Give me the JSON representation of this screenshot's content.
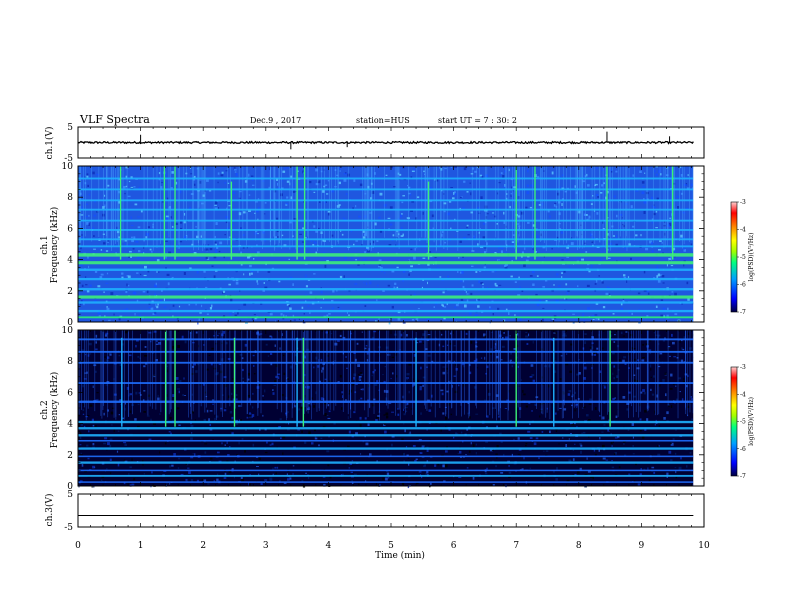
{
  "header": {
    "title": "VLF Spectra",
    "date": "Dec.9 , 2017",
    "station": "station=HUS",
    "start": "start UT = 7 : 30: 2"
  },
  "chart_data": [
    {
      "type": "line",
      "name": "ch1-waveform",
      "ylabel": "ch.1(V)",
      "ylim": [
        -5,
        5
      ],
      "yticks": [
        "5",
        "-5"
      ],
      "xlim": [
        0,
        10
      ],
      "baseline": 0,
      "noise_amplitude": 0.3,
      "spikes": [
        {
          "x": 1.0,
          "y": 2.5
        },
        {
          "x": 3.4,
          "y": -2.2
        },
        {
          "x": 4.3,
          "y": -1.5
        },
        {
          "x": 8.45,
          "y": 3.5
        },
        {
          "x": 9.45,
          "y": 2.0
        }
      ]
    },
    {
      "type": "heatmap",
      "name": "ch1-spectrogram",
      "ylabel": "ch.1\nFrequency (kHz)",
      "ylim": [
        0,
        10
      ],
      "yticks": [
        "0",
        "2",
        "4",
        "6",
        "8",
        "10"
      ],
      "xlim": [
        0,
        9.83
      ],
      "background": "#1f57e0",
      "bands": [
        {
          "f": 0.3,
          "width": 0.12,
          "color": "#2af07a"
        },
        {
          "f": 0.7,
          "width": 0.15,
          "color": "#1eb0ff"
        },
        {
          "f": 1.25,
          "width": 0.15,
          "color": "#1eb0ff"
        },
        {
          "f": 1.6,
          "width": 0.2,
          "color": "#3cf07a"
        },
        {
          "f": 2.1,
          "width": 0.15,
          "color": "#1eb0ff"
        },
        {
          "f": 2.75,
          "width": 0.15,
          "color": "#1eb0ff"
        },
        {
          "f": 3.35,
          "width": 0.15,
          "color": "#1eb0ff"
        },
        {
          "f": 3.8,
          "width": 0.2,
          "color": "#3cf07a"
        },
        {
          "f": 4.3,
          "width": 0.22,
          "color": "#3cf07a"
        },
        {
          "f": 4.85,
          "width": 0.12,
          "color": "#1eb0ff"
        },
        {
          "f": 5.3,
          "width": 0.12,
          "color": "#1eb0ff"
        },
        {
          "f": 5.9,
          "width": 0.12,
          "color": "#1eb0ff"
        },
        {
          "f": 6.5,
          "width": 0.12,
          "color": "#1eb0ff"
        },
        {
          "f": 7.2,
          "width": 0.12,
          "color": "#1eb0ff"
        },
        {
          "f": 7.8,
          "width": 0.12,
          "color": "#1eb0ff"
        },
        {
          "f": 8.5,
          "width": 0.12,
          "color": "#1eb0ff"
        },
        {
          "f": 9.2,
          "width": 0.12,
          "color": "#1eb0ff"
        }
      ],
      "bursts": [
        {
          "t": 0.68,
          "fmin": 4.0,
          "fmax": 10,
          "color": "#3cf07a"
        },
        {
          "t": 1.38,
          "fmin": 4.0,
          "fmax": 10,
          "color": "#3cf07a"
        },
        {
          "t": 1.55,
          "fmin": 4.0,
          "fmax": 10,
          "color": "#3cf07a"
        },
        {
          "t": 2.45,
          "fmin": 4.0,
          "fmax": 9,
          "color": "#3cf07a"
        },
        {
          "t": 3.5,
          "fmin": 4.0,
          "fmax": 10,
          "color": "#3cf07a"
        },
        {
          "t": 3.62,
          "fmin": 4.0,
          "fmax": 10,
          "color": "#3cf07a"
        },
        {
          "t": 5.6,
          "fmin": 4.0,
          "fmax": 9,
          "color": "#3cf07a"
        },
        {
          "t": 7.0,
          "fmin": 4.0,
          "fmax": 10,
          "color": "#3cf07a"
        },
        {
          "t": 7.3,
          "fmin": 4.0,
          "fmax": 10,
          "color": "#3cf07a"
        },
        {
          "t": 8.45,
          "fmin": 4.0,
          "fmax": 10,
          "color": "#3cf07a"
        },
        {
          "t": 9.5,
          "fmin": 4.0,
          "fmax": 10,
          "color": "#3cf07a"
        }
      ]
    },
    {
      "type": "heatmap",
      "name": "ch2-spectrogram",
      "ylabel": "ch.2\nFrequency (kHz)",
      "ylim": [
        0,
        10
      ],
      "yticks": [
        "0",
        "2",
        "4",
        "6",
        "8",
        "10"
      ],
      "xlim": [
        0,
        9.83
      ],
      "background": "#000033",
      "bands": [
        {
          "f": 0.25,
          "width": 0.1,
          "color": "#1e6eff"
        },
        {
          "f": 0.65,
          "width": 0.12,
          "color": "#1eb0ff"
        },
        {
          "f": 1.0,
          "width": 0.1,
          "color": "#1e6eff"
        },
        {
          "f": 1.5,
          "width": 0.15,
          "color": "#1eb0ff"
        },
        {
          "f": 1.9,
          "width": 0.1,
          "color": "#1e6eff"
        },
        {
          "f": 2.4,
          "width": 0.15,
          "color": "#1eb0ff"
        },
        {
          "f": 2.9,
          "width": 0.1,
          "color": "#1e6eff"
        },
        {
          "f": 3.25,
          "width": 0.15,
          "color": "#1eb0ff"
        },
        {
          "f": 3.7,
          "width": 0.15,
          "color": "#1eb0ff"
        },
        {
          "f": 4.1,
          "width": 0.15,
          "color": "#1eb0ff"
        },
        {
          "f": 5.4,
          "width": 0.15,
          "color": "#1e6eff"
        },
        {
          "f": 6.6,
          "width": 0.12,
          "color": "#1e6eff"
        },
        {
          "f": 7.9,
          "width": 0.12,
          "color": "#1e6eff"
        },
        {
          "f": 8.6,
          "width": 0.12,
          "color": "#1e6eff"
        },
        {
          "f": 9.4,
          "width": 0.12,
          "color": "#1e6eff"
        }
      ],
      "bursts": [
        {
          "t": 0.7,
          "fmin": 3.8,
          "fmax": 9.5,
          "color": "#1eb0ff"
        },
        {
          "t": 1.4,
          "fmin": 3.8,
          "fmax": 10,
          "color": "#3cf07a"
        },
        {
          "t": 1.55,
          "fmin": 3.8,
          "fmax": 10,
          "color": "#3cf07a"
        },
        {
          "t": 2.5,
          "fmin": 3.8,
          "fmax": 9.5,
          "color": "#3cf07a"
        },
        {
          "t": 3.5,
          "fmin": 3.8,
          "fmax": 9.5,
          "color": "#1eb0ff"
        },
        {
          "t": 3.6,
          "fmin": 3.8,
          "fmax": 9.5,
          "color": "#3cf07a"
        },
        {
          "t": 5.4,
          "fmin": 3.8,
          "fmax": 9.5,
          "color": "#1eb0ff"
        },
        {
          "t": 7.0,
          "fmin": 3.8,
          "fmax": 10,
          "color": "#3cf07a"
        },
        {
          "t": 7.6,
          "fmin": 3.8,
          "fmax": 9.5,
          "color": "#1eb0ff"
        },
        {
          "t": 8.5,
          "fmin": 3.8,
          "fmax": 10,
          "color": "#3cf07a"
        }
      ]
    },
    {
      "type": "line",
      "name": "ch3-waveform",
      "ylabel": "ch.3(V)",
      "ylim": [
        -5,
        5
      ],
      "yticks": [
        "5",
        "-5"
      ],
      "xlim": [
        0,
        10
      ],
      "baseline": -1.5,
      "noise_amplitude": 0
    }
  ],
  "xaxis": {
    "label": "Time (min)",
    "ticks": [
      "0",
      "1",
      "2",
      "3",
      "4",
      "5",
      "6",
      "7",
      "8",
      "9",
      "10"
    ],
    "xlim": [
      0,
      10
    ]
  },
  "colorbar": {
    "label": "log(PSD)(V²/Hz)",
    "ticks": [
      "-3",
      "-4",
      "-5",
      "-6",
      "-7"
    ],
    "range": [
      -7,
      -3
    ],
    "colors": [
      "#000040",
      "#0000ff",
      "#00a0ff",
      "#00ff80",
      "#a0ff00",
      "#ffff00",
      "#ff8000",
      "#ff0000",
      "#ffc8c8"
    ]
  }
}
